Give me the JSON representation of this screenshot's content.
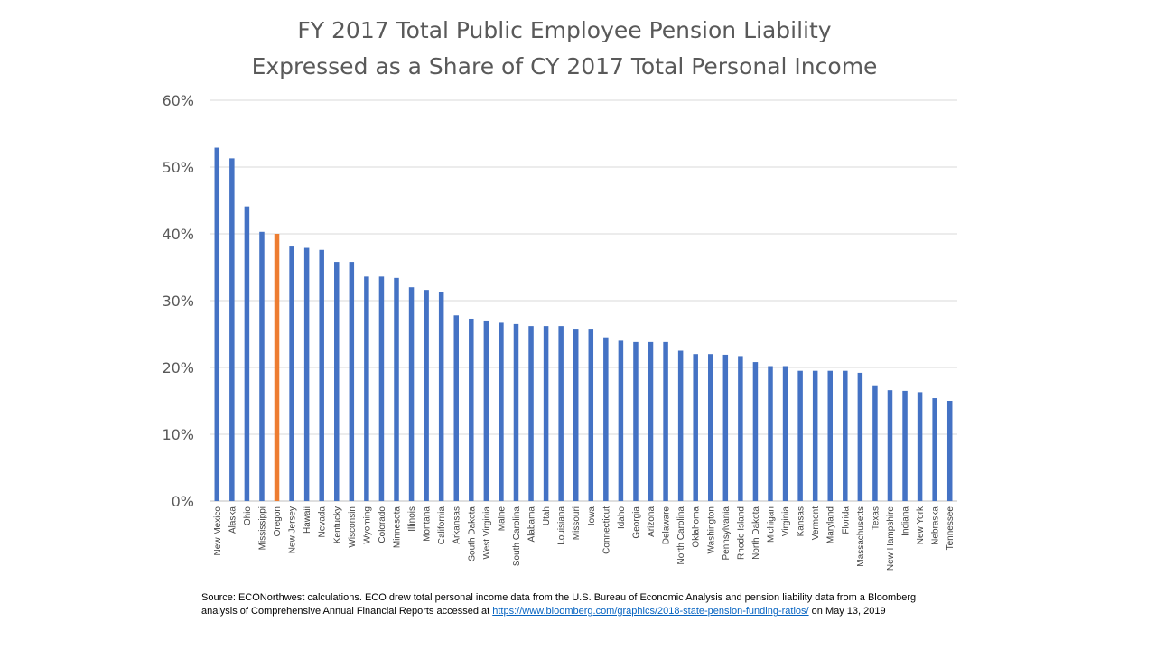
{
  "chart_data": {
    "type": "bar",
    "title_line1": "FY 2017 Total Public Employee Pension Liability",
    "title_line2": "Expressed as a Share of CY 2017 Total Personal Income",
    "categories": [
      "New Mexico",
      "Alaska",
      "Ohio",
      "Mississippi",
      "Oregon",
      "New Jersey",
      "Hawaii",
      "Nevada",
      "Kentucky",
      "Wisconsin",
      "Wyoming",
      "Colorado",
      "Minnesota",
      "Illinois",
      "Montana",
      "California",
      "Arkansas",
      "South Dakota",
      "West Virginia",
      "Maine",
      "South Carolina",
      "Alabama",
      "Utah",
      "Louisiana",
      "Missouri",
      "Iowa",
      "Connecticut",
      "Idaho",
      "Georgia",
      "Arizona",
      "Delaware",
      "North Carolina",
      "Oklahoma",
      "Washington",
      "Pennsylvania",
      "Rhode Island",
      "North Dakota",
      "Michigan",
      "Virginia",
      "Kansas",
      "Vermont",
      "Maryland",
      "Florida",
      "Massachusetts",
      "Texas",
      "New Hampshire",
      "Indiana",
      "New York",
      "Nebraska",
      "Tennessee"
    ],
    "values": [
      52.9,
      51.3,
      44.1,
      40.3,
      40.0,
      38.1,
      37.9,
      37.6,
      35.8,
      35.8,
      33.6,
      33.6,
      33.4,
      32.0,
      31.6,
      31.3,
      27.8,
      27.3,
      26.9,
      26.7,
      26.5,
      26.2,
      26.2,
      26.2,
      25.8,
      25.8,
      24.5,
      24.0,
      23.8,
      23.8,
      23.8,
      22.5,
      22.0,
      22.0,
      21.9,
      21.7,
      20.8,
      20.2,
      20.2,
      19.5,
      19.5,
      19.5,
      19.5,
      19.2,
      17.2,
      16.6,
      16.5,
      16.3,
      15.4,
      15.0
    ],
    "highlight_category": "Oregon",
    "ylim": [
      0,
      60
    ],
    "yticks": [
      0,
      10,
      20,
      30,
      40,
      50,
      60
    ],
    "ytick_labels": [
      "0%",
      "10%",
      "20%",
      "30%",
      "40%",
      "50%",
      "60%"
    ],
    "xlabel": "",
    "ylabel": "",
    "grid": true,
    "legend": "none",
    "colors": {
      "bar": "#4472c4",
      "highlight": "#ed7d31",
      "grid": "#d9d9d9",
      "axis": "#bfbfbf",
      "text": "#595959"
    }
  },
  "source": {
    "text_before_link": "Source: ECONorthwest  calculations. ECO drew total personal income data from the U.S. Bureau of Economic Analysis and pension liability data from a Bloomberg analysis of Comprehensive Annual Financial Reports accessed at ",
    "link_text": "https://www.bloomberg.com/graphics/2018-state-pension-funding-ratios/",
    "text_after_link": " on May 13, 2019"
  }
}
